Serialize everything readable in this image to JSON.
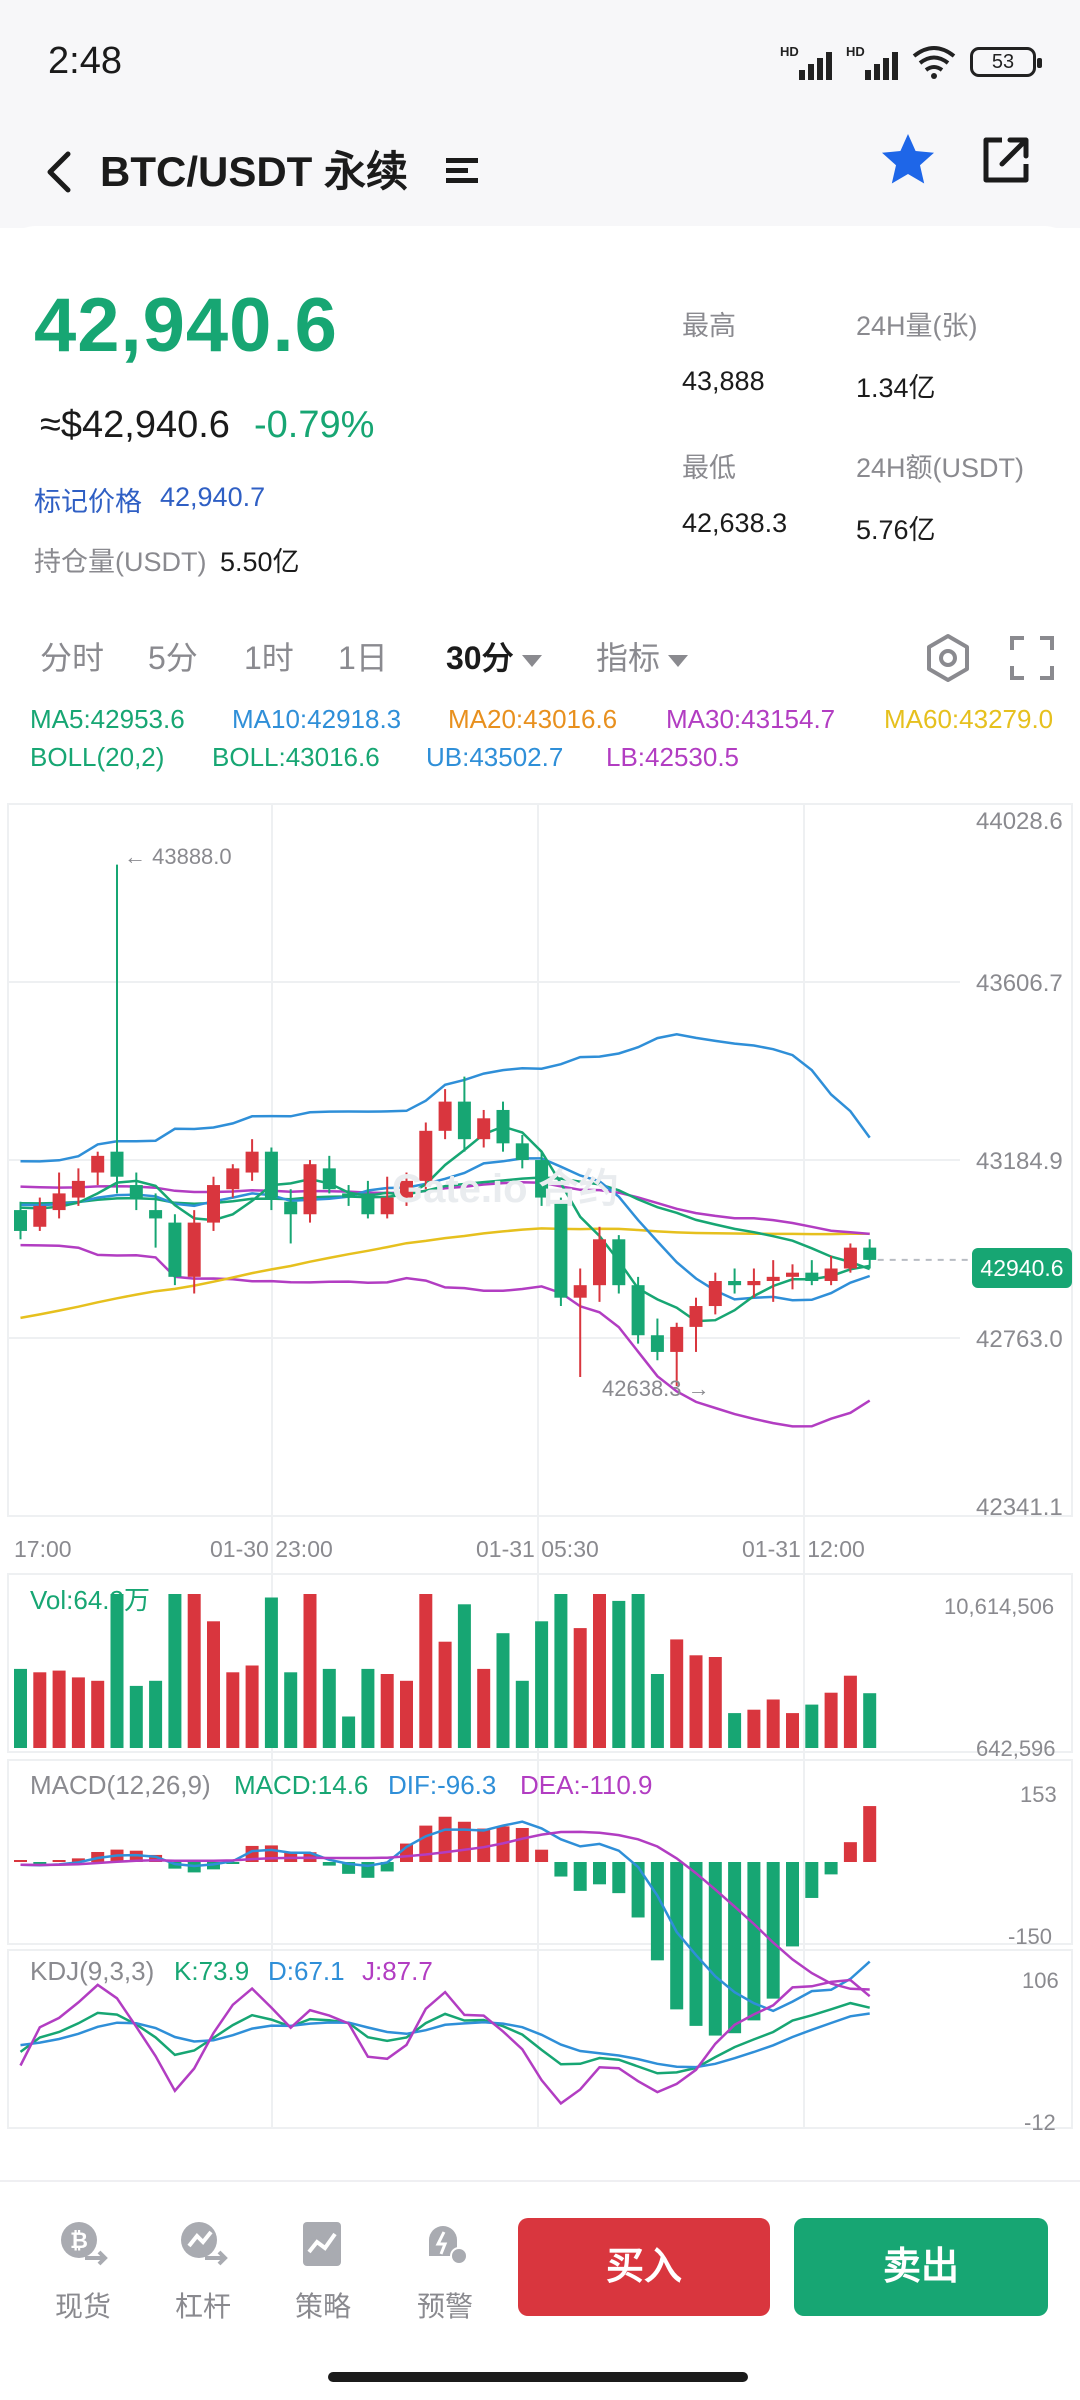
{
  "status": {
    "time": "2:48",
    "battery": "53",
    "sim1": "HD",
    "sim2": "HD"
  },
  "header": {
    "title": "BTC/USDT 永续"
  },
  "quote": {
    "last_price": "42,940.6",
    "usd_price": "≈$42,940.6",
    "change": "-0.79%",
    "mark_label": "标记价格",
    "mark_value": "42,940.7",
    "hold_label": "持仓量(USDT)",
    "hold_value": "5.50亿"
  },
  "stats": {
    "high_label": "最高",
    "high_value": "43,888",
    "vol_label": "24H量(张)",
    "vol_value": "1.34亿",
    "low_label": "最低",
    "low_value": "42,638.3",
    "amt_label": "24H额(USDT)",
    "amt_value": "5.76亿"
  },
  "tabs": [
    "分时",
    "5分",
    "1时",
    "1日",
    "30分",
    "指标"
  ],
  "legend": {
    "ma5": "MA5:42953.6",
    "ma10": "MA10:42918.3",
    "ma20": "MA20:43016.6",
    "ma30": "MA30:43154.7",
    "ma60": "MA60:43279.0",
    "boll": "BOLL(20,2)",
    "boll_mid": "BOLL:43016.6",
    "ub": "UB:43502.7",
    "lb": "LB:42530.5",
    "vol": "Vol:64.3万",
    "macd": "MACD(12,26,9)",
    "macd_v": "MACD:14.6",
    "dif": "DIF:-96.3",
    "dea": "DEA:-110.9",
    "kdj": "KDJ(9,3,3)",
    "k": "K:73.9",
    "d": "D:67.1",
    "j": "J:87.7"
  },
  "price_axis": [
    "44028.6",
    "43606.7",
    "43184.9",
    "42763.0",
    "42341.1"
  ],
  "time_axis": [
    "17:00",
    "01-30 23:00",
    "01-31 05:30",
    "01-31 12:00"
  ],
  "high_marker": "← 43888.0",
  "low_marker": "42638.3 →",
  "current_tag": "42940.6",
  "vol_axis": [
    "10,614,506",
    "642,596"
  ],
  "macd_axis": [
    "153",
    "-150"
  ],
  "kdj_axis": [
    "106",
    "-12"
  ],
  "watermark": "Gate.io 合约",
  "nav": [
    "现货",
    "杠杆",
    "策略",
    "预警"
  ],
  "buy_label": "买入",
  "sell_label": "卖出",
  "colors": {
    "up": "#d9363e",
    "down": "#17a673",
    "ma5": "#17a673",
    "ma10": "#2f8fd8",
    "ma20": "#e8901e",
    "ma30": "#b23dc2",
    "ma60": "#e6c01e"
  },
  "chart_data": {
    "type": "candlestick",
    "interval": "30分",
    "ylim": [
      42341.1,
      44028.6
    ],
    "candles": [
      {
        "o": 43060,
        "c": 43010,
        "h": 43080,
        "l": 42990
      },
      {
        "o": 43020,
        "c": 43070,
        "h": 43090,
        "l": 43010
      },
      {
        "o": 43060,
        "c": 43100,
        "h": 43150,
        "l": 43040
      },
      {
        "o": 43090,
        "c": 43130,
        "h": 43160,
        "l": 43070
      },
      {
        "o": 43150,
        "c": 43190,
        "h": 43200,
        "l": 43120
      },
      {
        "o": 43200,
        "c": 43140,
        "h": 43888,
        "l": 43100
      },
      {
        "o": 43120,
        "c": 43090,
        "h": 43150,
        "l": 43060
      },
      {
        "o": 43060,
        "c": 43040,
        "h": 43100,
        "l": 42970
      },
      {
        "o": 43030,
        "c": 42900,
        "h": 43050,
        "l": 42880
      },
      {
        "o": 42900,
        "c": 43030,
        "h": 43060,
        "l": 42860
      },
      {
        "o": 43030,
        "c": 43120,
        "h": 43140,
        "l": 43010
      },
      {
        "o": 43110,
        "c": 43160,
        "h": 43170,
        "l": 43090
      },
      {
        "o": 43150,
        "c": 43200,
        "h": 43230,
        "l": 43130
      },
      {
        "o": 43200,
        "c": 43090,
        "h": 43210,
        "l": 43060
      },
      {
        "o": 43080,
        "c": 43050,
        "h": 43110,
        "l": 42980
      },
      {
        "o": 43050,
        "c": 43170,
        "h": 43180,
        "l": 43030
      },
      {
        "o": 43160,
        "c": 43110,
        "h": 43190,
        "l": 43100
      },
      {
        "o": 43100,
        "c": 43090,
        "h": 43120,
        "l": 43070
      },
      {
        "o": 43100,
        "c": 43050,
        "h": 43130,
        "l": 43040
      },
      {
        "o": 43050,
        "c": 43090,
        "h": 43140,
        "l": 43040
      },
      {
        "o": 43090,
        "c": 43130,
        "h": 43150,
        "l": 43070
      },
      {
        "o": 43130,
        "c": 43250,
        "h": 43270,
        "l": 43110
      },
      {
        "o": 43250,
        "c": 43320,
        "h": 43350,
        "l": 43230
      },
      {
        "o": 43320,
        "c": 43230,
        "h": 43380,
        "l": 43200
      },
      {
        "o": 43230,
        "c": 43280,
        "h": 43300,
        "l": 43210
      },
      {
        "o": 43300,
        "c": 43220,
        "h": 43320,
        "l": 43200
      },
      {
        "o": 43220,
        "c": 43180,
        "h": 43240,
        "l": 43160
      },
      {
        "o": 43180,
        "c": 43090,
        "h": 43200,
        "l": 43070
      },
      {
        "o": 43080,
        "c": 42850,
        "h": 43090,
        "l": 42830
      },
      {
        "o": 42850,
        "c": 42880,
        "h": 42920,
        "l": 42660
      },
      {
        "o": 42880,
        "c": 42990,
        "h": 43020,
        "l": 42840
      },
      {
        "o": 42990,
        "c": 42880,
        "h": 43000,
        "l": 42860
      },
      {
        "o": 42880,
        "c": 42760,
        "h": 42900,
        "l": 42740
      },
      {
        "o": 42760,
        "c": 42720,
        "h": 42800,
        "l": 42700
      },
      {
        "o": 42720,
        "c": 42780,
        "h": 42790,
        "l": 42638.3
      },
      {
        "o": 42780,
        "c": 42830,
        "h": 42850,
        "l": 42720
      },
      {
        "o": 42830,
        "c": 42890,
        "h": 42910,
        "l": 42810
      },
      {
        "o": 42890,
        "c": 42880,
        "h": 42920,
        "l": 42860
      },
      {
        "o": 42880,
        "c": 42890,
        "h": 42920,
        "l": 42850
      },
      {
        "o": 42890,
        "c": 42900,
        "h": 42940,
        "l": 42840
      },
      {
        "o": 42900,
        "c": 42910,
        "h": 42930,
        "l": 42870
      },
      {
        "o": 42910,
        "c": 42890,
        "h": 42940,
        "l": 42880
      },
      {
        "o": 42890,
        "c": 42920,
        "h": 42950,
        "l": 42880
      },
      {
        "o": 42920,
        "c": 42970,
        "h": 42980,
        "l": 42910
      },
      {
        "o": 42970,
        "c": 42940.6,
        "h": 42990,
        "l": 42920
      }
    ]
  }
}
